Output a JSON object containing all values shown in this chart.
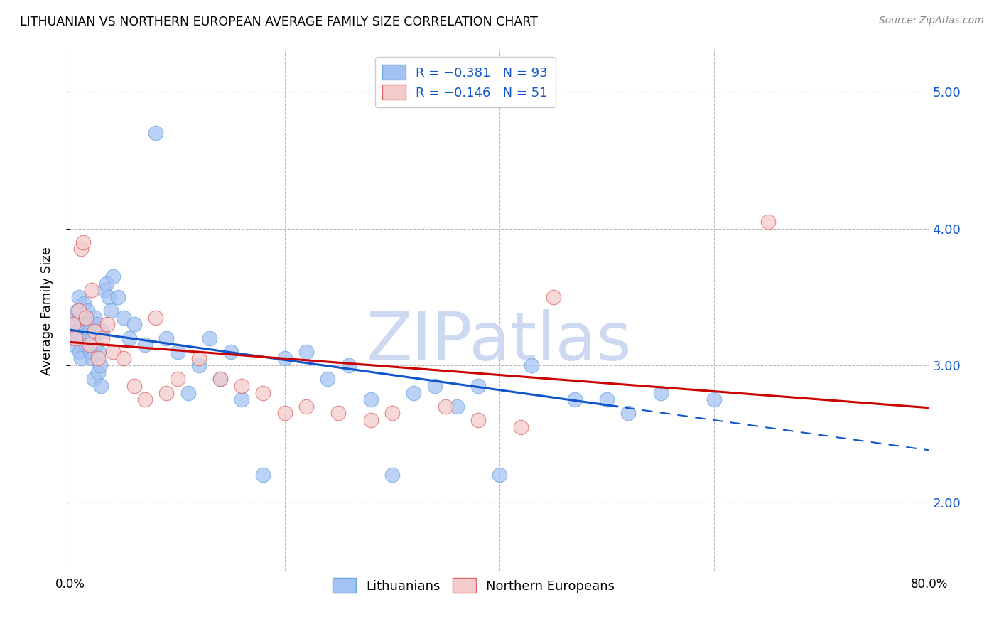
{
  "title": "LITHUANIAN VS NORTHERN EUROPEAN AVERAGE FAMILY SIZE CORRELATION CHART",
  "source": "Source: ZipAtlas.com",
  "ylabel": "Average Family Size",
  "ytick_values": [
    2.0,
    3.0,
    4.0,
    5.0
  ],
  "ytick_labels": [
    "2.00",
    "3.00",
    "4.00",
    "5.00"
  ],
  "xmin": 0.0,
  "xmax": 80.0,
  "ymin": 1.5,
  "ymax": 5.3,
  "blue_color": "#a4c2f4",
  "blue_edge": "#6fa8dc",
  "pink_color": "#f4cccc",
  "pink_edge": "#e06666",
  "blue_line_color": "#1155cc",
  "pink_line_color": "#cc0000",
  "blue_line_intercept": 3.26,
  "blue_line_slope": -0.011,
  "pink_line_intercept": 3.17,
  "pink_line_slope": -0.006,
  "blue_solid_end": 50.0,
  "blue_x": [
    0.2,
    0.3,
    0.4,
    0.5,
    0.6,
    0.7,
    0.8,
    0.9,
    1.0,
    1.1,
    1.2,
    1.3,
    1.4,
    1.5,
    1.6,
    1.7,
    1.8,
    1.9,
    2.0,
    2.1,
    2.2,
    2.3,
    2.4,
    2.5,
    2.6,
    2.7,
    2.8,
    2.9,
    3.0,
    3.2,
    3.4,
    3.6,
    3.8,
    4.0,
    4.5,
    5.0,
    5.5,
    6.0,
    7.0,
    8.0,
    9.0,
    10.0,
    11.0,
    12.0,
    13.0,
    14.0,
    15.0,
    16.0,
    18.0,
    20.0,
    22.0,
    24.0,
    26.0,
    28.0,
    30.0,
    32.0,
    34.0,
    36.0,
    38.0,
    40.0,
    43.0,
    47.0,
    50.0,
    52.0,
    55.0,
    60.0
  ],
  "blue_y": [
    3.2,
    3.35,
    3.15,
    3.3,
    3.25,
    3.4,
    3.5,
    3.1,
    3.05,
    3.3,
    3.2,
    3.45,
    3.35,
    3.15,
    3.4,
    3.3,
    3.25,
    3.1,
    3.2,
    3.05,
    2.9,
    3.35,
    3.15,
    3.3,
    2.95,
    3.1,
    3.0,
    2.85,
    3.25,
    3.55,
    3.6,
    3.5,
    3.4,
    3.65,
    3.5,
    3.35,
    3.2,
    3.3,
    3.15,
    4.7,
    3.2,
    3.1,
    2.8,
    3.0,
    3.2,
    2.9,
    3.1,
    2.75,
    2.2,
    3.05,
    3.1,
    2.9,
    3.0,
    2.75,
    2.2,
    2.8,
    2.85,
    2.7,
    2.85,
    2.2,
    3.0,
    2.75,
    2.75,
    2.65,
    2.8,
    2.75
  ],
  "pink_x": [
    0.3,
    0.5,
    0.8,
    1.0,
    1.2,
    1.5,
    1.8,
    2.0,
    2.3,
    2.6,
    3.0,
    3.5,
    4.0,
    5.0,
    6.0,
    7.0,
    8.0,
    9.0,
    10.0,
    12.0,
    14.0,
    16.0,
    18.0,
    20.0,
    22.0,
    25.0,
    28.0,
    30.0,
    35.0,
    38.0,
    42.0,
    45.0,
    65.0
  ],
  "pink_y": [
    3.3,
    3.2,
    3.4,
    3.85,
    3.9,
    3.35,
    3.15,
    3.55,
    3.25,
    3.05,
    3.2,
    3.3,
    3.1,
    3.05,
    2.85,
    2.75,
    3.35,
    2.8,
    2.9,
    3.05,
    2.9,
    2.85,
    2.8,
    2.65,
    2.7,
    2.65,
    2.6,
    2.65,
    2.7,
    2.6,
    2.55,
    3.5,
    4.05
  ],
  "watermark_text": "ZIPatlas",
  "watermark_color": "#d0dff0",
  "legend_label1": "R = −0.381   N = 93",
  "legend_label2": "R = −0.146   N = 51",
  "bottom_label1": "Lithuanians",
  "bottom_label2": "Northern Europeans"
}
